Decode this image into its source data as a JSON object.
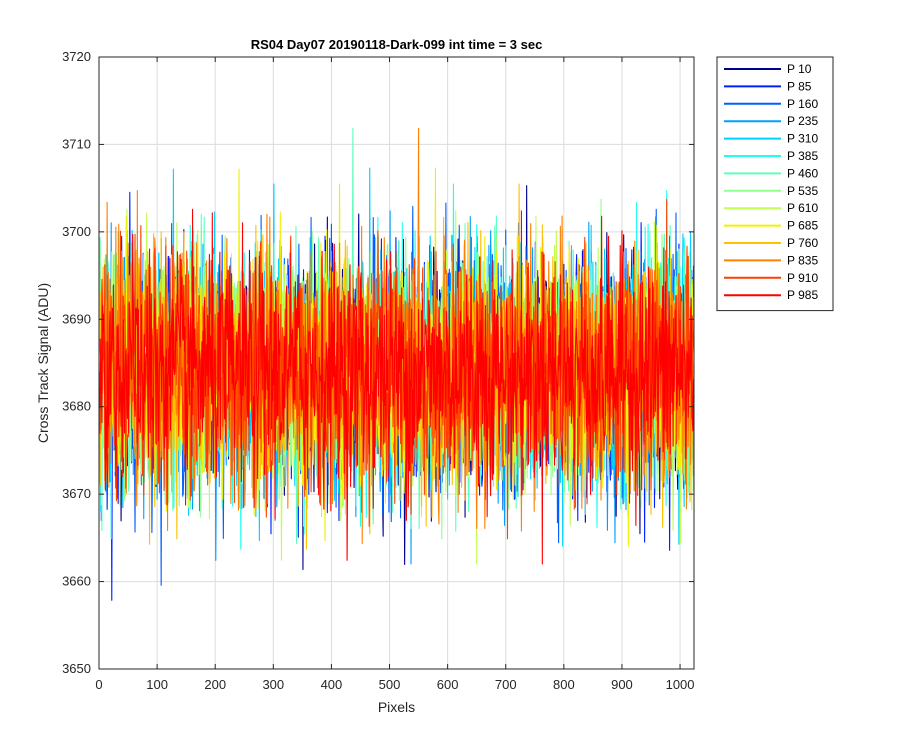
{
  "chart_data": {
    "type": "line",
    "title": "RS04 Day07 20190118-Dark-099 int time = 3 sec",
    "xlabel": "Pixels",
    "ylabel": "Cross Track Signal (ADU)",
    "xlim": [
      0,
      1024
    ],
    "ylim": [
      3650,
      3720
    ],
    "xticks": [
      0,
      100,
      200,
      300,
      400,
      500,
      600,
      700,
      800,
      900,
      1000
    ],
    "yticks": [
      3650,
      3660,
      3670,
      3680,
      3690,
      3700,
      3710,
      3720
    ],
    "grid": true,
    "legend_position": "outside-top-right",
    "series": [
      {
        "name": "P 10",
        "color": "#00008f",
        "mean": 3684,
        "noise_sd": 6.5
      },
      {
        "name": "P 85",
        "color": "#0020ff",
        "mean": 3684,
        "noise_sd": 6.5
      },
      {
        "name": "P 160",
        "color": "#0060ff",
        "mean": 3684,
        "noise_sd": 6.5
      },
      {
        "name": "P 235",
        "color": "#00a0ff",
        "mean": 3684,
        "noise_sd": 6.5
      },
      {
        "name": "P 310",
        "color": "#00d0ff",
        "mean": 3684,
        "noise_sd": 6.5
      },
      {
        "name": "P 385",
        "color": "#20ffef",
        "mean": 3684,
        "noise_sd": 6.5
      },
      {
        "name": "P 460",
        "color": "#60ffbf",
        "mean": 3684,
        "noise_sd": 6.5
      },
      {
        "name": "P 535",
        "color": "#90ff90",
        "mean": 3684,
        "noise_sd": 6.5
      },
      {
        "name": "P 610",
        "color": "#c0ff50",
        "mean": 3684,
        "noise_sd": 6.5
      },
      {
        "name": "P 685",
        "color": "#f0f000",
        "mean": 3684,
        "noise_sd": 6.5
      },
      {
        "name": "P 760",
        "color": "#ffc000",
        "mean": 3684,
        "noise_sd": 6.5
      },
      {
        "name": "P 835",
        "color": "#ff8000",
        "mean": 3684,
        "noise_sd": 6.5
      },
      {
        "name": "P 910",
        "color": "#ff4000",
        "mean": 3684,
        "noise_sd": 6.5
      },
      {
        "name": "P 985",
        "color": "#ff0000",
        "mean": 3684,
        "noise_sd": 6.5
      }
    ]
  }
}
